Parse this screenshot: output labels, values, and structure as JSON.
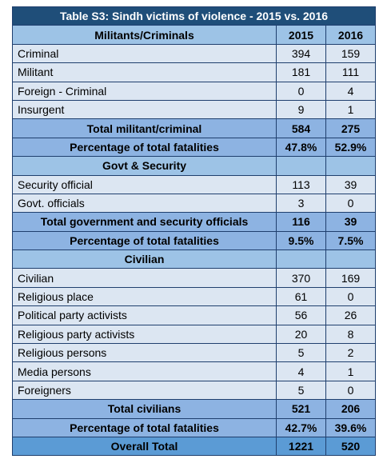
{
  "table": {
    "title": "Table S3: Sindh victims of violence - 2015 vs. 2016",
    "header": {
      "label": "Militants/Criminals",
      "columns": [
        "2015",
        "2016"
      ]
    },
    "sections": [
      {
        "rows": [
          [
            "Criminal",
            394,
            159
          ],
          [
            "Militant",
            181,
            111
          ],
          [
            "Foreign - Criminal",
            0,
            4
          ],
          [
            "Insurgent",
            9,
            1
          ]
        ],
        "total": [
          "Total militant/criminal",
          584,
          275
        ],
        "percentage": [
          "Percentage of total fatalities",
          "47.8%",
          "52.9%"
        ]
      },
      {
        "heading": "Govt & Security",
        "rows": [
          [
            "Security official",
            113,
            39
          ],
          [
            "Govt. officials",
            3,
            0
          ]
        ],
        "total": [
          "Total government and security officials",
          116,
          39
        ],
        "percentage": [
          "Percentage of total fatalities",
          "9.5%",
          "7.5%"
        ]
      },
      {
        "heading": "Civilian",
        "rows": [
          [
            "Civilian",
            370,
            169
          ],
          [
            "Religious place",
            61,
            0
          ],
          [
            "Political party activists",
            56,
            26
          ],
          [
            "Religious party activists",
            20,
            8
          ],
          [
            "Religious persons",
            5,
            2
          ],
          [
            "Media persons",
            4,
            1
          ],
          [
            "Foreigners",
            5,
            0
          ]
        ],
        "total": [
          "Total civilians",
          521,
          206
        ],
        "percentage": [
          "Percentage of total fatalities",
          "42.7%",
          "39.6%"
        ]
      }
    ],
    "overall_total": [
      "Overall Total",
      1221,
      520
    ]
  }
}
